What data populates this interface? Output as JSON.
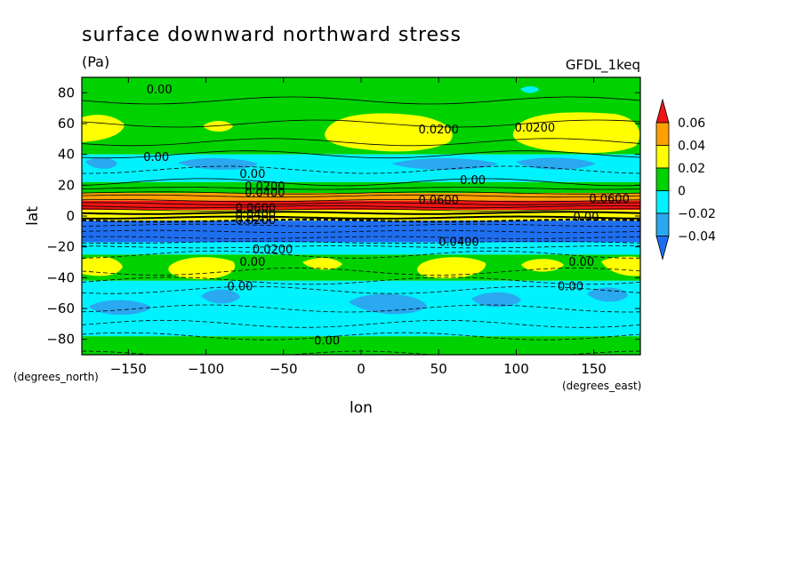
{
  "chart_data": {
    "type": "heatmap",
    "title": "surface downward northward stress",
    "units": "(Pa)",
    "dataset": "GFDL_1keq",
    "xlabel": "lon",
    "ylabel": "lat",
    "x_units": "(degrees_east)",
    "y_units": "(degrees_north)",
    "xlim": [
      -180,
      180
    ],
    "ylim": [
      -90,
      90
    ],
    "x_ticks": [
      -150,
      -100,
      -50,
      0,
      50,
      100,
      150
    ],
    "x_tick_labels": [
      "−150",
      "−100",
      "−50",
      "0",
      "50",
      "100",
      "150"
    ],
    "y_ticks": [
      80,
      60,
      40,
      20,
      0,
      -20,
      -40,
      -60,
      -80
    ],
    "y_tick_labels": [
      "80",
      "60",
      "40",
      "20",
      "0",
      "−20",
      "−40",
      "−60",
      "−80"
    ],
    "colorbar": {
      "levels": [
        -0.04,
        -0.02,
        0,
        0.02,
        0.04,
        0.06
      ],
      "labels": [
        "−0.04",
        "−0.02",
        "0",
        "0.02",
        "0.04",
        "0.06"
      ],
      "colors": [
        "#1e6ef0",
        "#2aa8f0",
        "#00f2ff",
        "#00d200",
        "#ffff00",
        "#ffa000",
        "#f01414"
      ]
    },
    "lat_bands": [
      {
        "lat_range": [
          75,
          90
        ],
        "value_class": "0 to 0.02",
        "color": "#00d200"
      },
      {
        "lat_range": [
          40,
          75
        ],
        "value_class": "0 to 0.02 (with 0.02 to 0.04 patches near 55N)",
        "color": "#00d200"
      },
      {
        "lat_range": [
          22,
          40
        ],
        "value_class": "-0.02 to 0",
        "color": "#00f2ff"
      },
      {
        "lat_range": [
          15,
          22
        ],
        "value_class": "0 to 0.04",
        "color": "#00d200"
      },
      {
        "lat_range": [
          10,
          15
        ],
        "value_class": "0.04 to 0.06",
        "color": "#ffa000"
      },
      {
        "lat_range": [
          4,
          10
        ],
        "value_class": "> 0.06",
        "color": "#f01414"
      },
      {
        "lat_range": [
          -3,
          4
        ],
        "value_class": "0 to 0.04",
        "color": "#ffff00"
      },
      {
        "lat_range": [
          -17,
          -3
        ],
        "value_class": "< -0.04",
        "color": "#1e6ef0"
      },
      {
        "lat_range": [
          -25,
          -17
        ],
        "value_class": "-0.02 to 0",
        "color": "#00f2ff"
      },
      {
        "lat_range": [
          -42,
          -25
        ],
        "value_class": "0 to 0.02 (with 0.02 to 0.04 patches near 35S)",
        "color": "#00d200"
      },
      {
        "lat_range": [
          -78,
          -42
        ],
        "value_class": "-0.02 to 0",
        "color": "#00f2ff"
      },
      {
        "lat_range": [
          -90,
          -78
        ],
        "value_class": "0 to 0.02",
        "color": "#00d200"
      }
    ],
    "contour_labels": [
      {
        "text": "0.00",
        "lon": -130,
        "lat": 82
      },
      {
        "text": "0.0200",
        "lon": 50,
        "lat": 56
      },
      {
        "text": "0.0200",
        "lon": 112,
        "lat": 57
      },
      {
        "text": "0.00",
        "lon": -132,
        "lat": 38
      },
      {
        "text": "0.00",
        "lon": -70,
        "lat": 27
      },
      {
        "text": "0.00",
        "lon": 72,
        "lat": 23
      },
      {
        "text": "0.0200",
        "lon": -62,
        "lat": 19
      },
      {
        "text": "0.0400",
        "lon": -62,
        "lat": 15
      },
      {
        "text": "0.0600",
        "lon": 50,
        "lat": 10
      },
      {
        "text": "0.0600",
        "lon": 160,
        "lat": 11
      },
      {
        "text": "0.0600",
        "lon": -68,
        "lat": 5
      },
      {
        "text": "0.0400",
        "lon": -68,
        "lat": 1
      },
      {
        "text": "0.0200",
        "lon": -68,
        "lat": -3
      },
      {
        "text": "0.00",
        "lon": 145,
        "lat": -1
      },
      {
        "text": "0.0400",
        "lon": 63,
        "lat": -17
      },
      {
        "text": "0.0200",
        "lon": -57,
        "lat": -22
      },
      {
        "text": "0.00",
        "lon": -70,
        "lat": -30
      },
      {
        "text": "0.00",
        "lon": 142,
        "lat": -30
      },
      {
        "text": "0.00",
        "lon": -78,
        "lat": -46
      },
      {
        "text": "0.00",
        "lon": 135,
        "lat": -46
      },
      {
        "text": "0.00",
        "lon": -22,
        "lat": -81
      }
    ]
  }
}
